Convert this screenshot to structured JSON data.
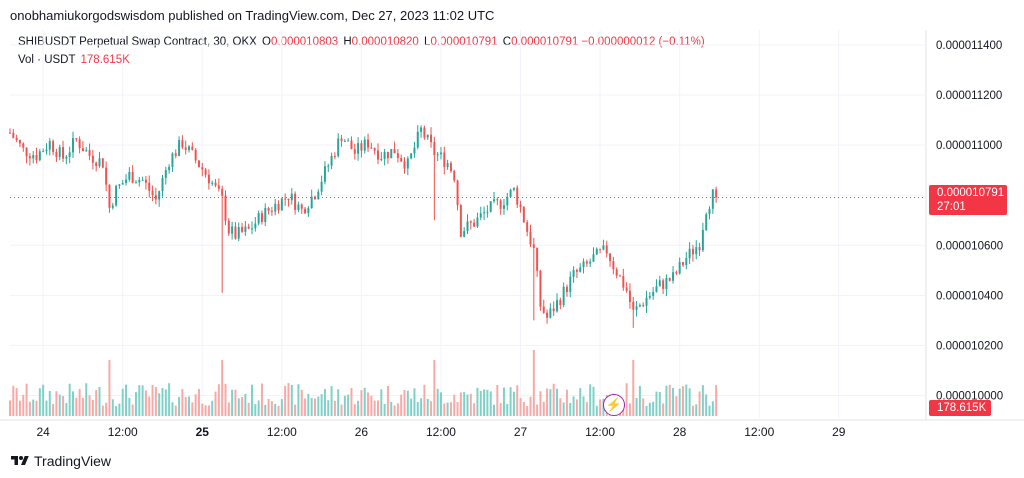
{
  "header": {
    "published": "onobhamiukorgodswisdom published on TradingView.com, Dec 27, 2023 11:02 UTC"
  },
  "legend": {
    "symbol": "SHIBUSDT Perpetual Swap Contract, 30, OKX",
    "open_label": "O",
    "open": "0.000010803",
    "high_label": "H",
    "high": "0.000010820",
    "low_label": "L",
    "low": "0.000010791",
    "close_label": "C",
    "close": "0.000010791",
    "change": "−0.000000012 (−0.11%)",
    "vol_label": "Vol · USDT",
    "vol_value": "178.615K"
  },
  "badges": {
    "last_price": "0.000010791",
    "countdown": "27:01",
    "last_volume": "178.615K"
  },
  "footer": {
    "brand": "TradingView"
  },
  "colors": {
    "up": "#26a69a",
    "down": "#ef5350",
    "up_vol": "#7fd1c8",
    "down_vol": "#f7a9a7",
    "grid": "#f0f3fa",
    "last_price_line": "#f23645"
  },
  "icons": {
    "flash": "lightning-icon"
  },
  "chart_data": {
    "type": "candlestick",
    "title": "SHIBUSDT Perpetual Swap Contract, 30, OKX",
    "ylim": [
      9.91e-06,
      1.146e-05
    ],
    "y_ticks": [
      "0.000011400",
      "0.000011200",
      "0.000011000",
      "0.000010800",
      "0.000010600",
      "0.000010400",
      "0.000010200",
      "0.000010000"
    ],
    "y_tick_values": [
      1.14e-05,
      1.12e-05,
      1.1e-05,
      1.08e-05,
      1.06e-05,
      1.04e-05,
      1.02e-05,
      1e-05
    ],
    "x_ticks": [
      "24",
      "12:00",
      "25",
      "12:00",
      "26",
      "12:00",
      "27",
      "12:00",
      "28",
      "12:00",
      "29"
    ],
    "x_bold": [
      false,
      false,
      true,
      false,
      false,
      false,
      false,
      false,
      false,
      false,
      false
    ],
    "x_range_hours": [
      -5,
      133
    ],
    "x_tick_hours": [
      0,
      12,
      24,
      36,
      48,
      60,
      72,
      84,
      96,
      108,
      120
    ],
    "last_price": 1.0791e-05,
    "close_path": [
      [
        -5,
        1.105e-05
      ],
      [
        -3,
        1.098e-05
      ],
      [
        -1,
        1.096e-05
      ],
      [
        1,
        1.101e-05
      ],
      [
        3,
        1.095e-05
      ],
      [
        5,
        1.102e-05
      ],
      [
        7,
        1.096e-05
      ],
      [
        9,
        1.093e-05
      ],
      [
        10,
        1.075e-05
      ],
      [
        11,
        1.082e-05
      ],
      [
        13,
        1.088e-05
      ],
      [
        15,
        1.086e-05
      ],
      [
        17,
        1.078e-05
      ],
      [
        19,
        1.094e-05
      ],
      [
        21,
        1.101e-05
      ],
      [
        23,
        1.094e-05
      ],
      [
        25,
        1.087e-05
      ],
      [
        27,
        1.078e-05
      ],
      [
        28,
        1.066e-05
      ],
      [
        29,
        1.064e-05
      ],
      [
        31,
        1.066e-05
      ],
      [
        33,
        1.072e-05
      ],
      [
        35,
        1.076e-05
      ],
      [
        37,
        1.08e-05
      ],
      [
        39,
        1.074e-05
      ],
      [
        41,
        1.081e-05
      ],
      [
        43,
        1.092e-05
      ],
      [
        45,
        1.104e-05
      ],
      [
        47,
        1.097e-05
      ],
      [
        49,
        1.101e-05
      ],
      [
        51,
        1.096e-05
      ],
      [
        53,
        1.098e-05
      ],
      [
        55,
        1.092e-05
      ],
      [
        57,
        1.106e-05
      ],
      [
        59,
        1.097e-05
      ],
      [
        61,
        1.093e-05
      ],
      [
        62,
        1.088e-05
      ],
      [
        63,
        1.066e-05
      ],
      [
        65,
        1.069e-05
      ],
      [
        67,
        1.074e-05
      ],
      [
        69,
        1.077e-05
      ],
      [
        71,
        1.082e-05
      ],
      [
        72,
        1.075e-05
      ],
      [
        73,
        1.066e-05
      ],
      [
        74,
        1.058e-05
      ],
      [
        75,
        1.036e-05
      ],
      [
        76,
        1.031e-05
      ],
      [
        78,
        1.039e-05
      ],
      [
        80,
        1.048e-05
      ],
      [
        82,
        1.052e-05
      ],
      [
        83,
        1.055e-05
      ],
      [
        85,
        1.058e-05
      ],
      [
        86,
        1.052e-05
      ],
      [
        88,
        1.042e-05
      ],
      [
        89,
        1.033e-05
      ],
      [
        91,
        1.039e-05
      ],
      [
        93,
        1.044e-05
      ],
      [
        95,
        1.047e-05
      ],
      [
        97,
        1.055e-05
      ],
      [
        99,
        1.061e-05
      ],
      [
        100,
        1.075e-05
      ],
      [
        101,
        1.08e-05
      ],
      [
        101.5,
        1.0791e-05
      ]
    ],
    "spikes": [
      {
        "h": 10,
        "low": 1.073e-05
      },
      {
        "h": 27,
        "low": 1.041e-05
      },
      {
        "h": 59,
        "low": 1.07e-05
      },
      {
        "h": 74,
        "low": 1.03e-05,
        "vol": 1.0
      },
      {
        "h": 89,
        "low": 1.027e-05
      }
    ]
  }
}
